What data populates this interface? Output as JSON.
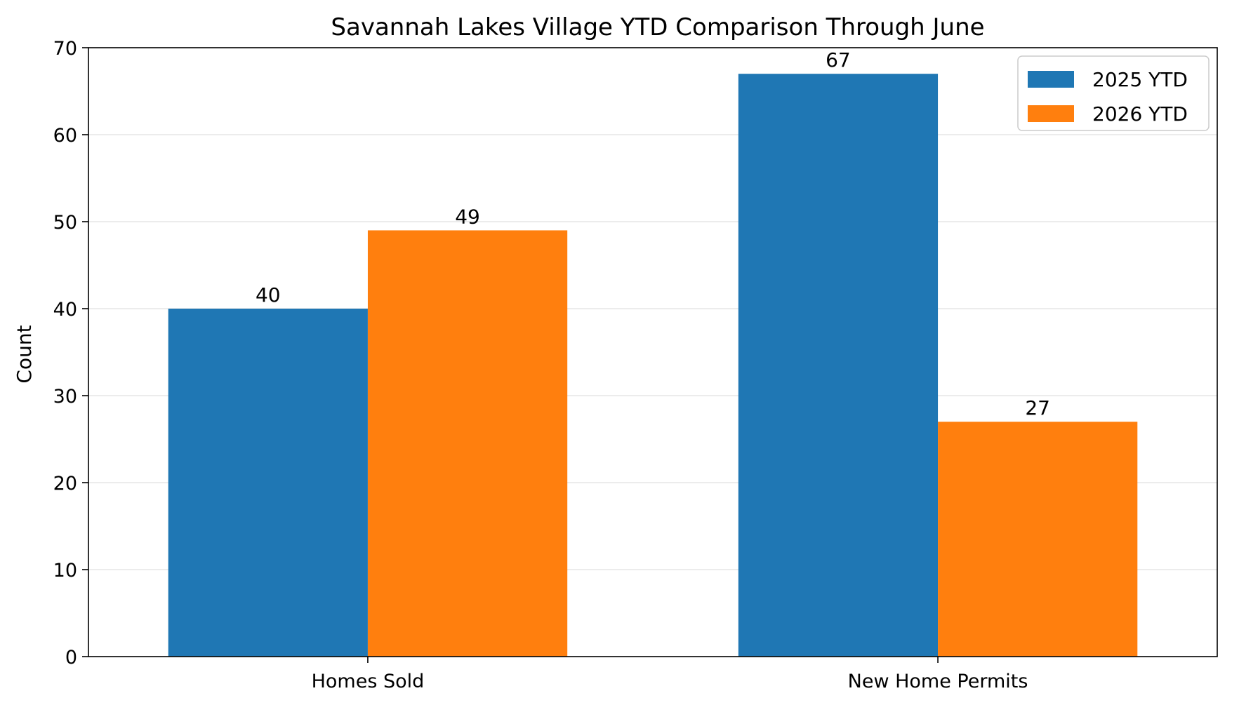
{
  "chart_data": {
    "type": "bar",
    "title": "Savannah Lakes Village YTD Comparison Through June",
    "xlabel": "",
    "ylabel": "Count",
    "categories": [
      "Homes Sold",
      "New Home Permits"
    ],
    "series": [
      {
        "name": "2025 YTD",
        "values": [
          40,
          67
        ],
        "color": "#1f77b4"
      },
      {
        "name": "2026 YTD",
        "values": [
          49,
          27
        ],
        "color": "#ff7f0e"
      }
    ],
    "ylim": [
      0,
      70
    ],
    "yticks": [
      0,
      10,
      20,
      30,
      40,
      50,
      60,
      70
    ],
    "grid": true,
    "legend_position": "top-right",
    "data_labels": true
  }
}
